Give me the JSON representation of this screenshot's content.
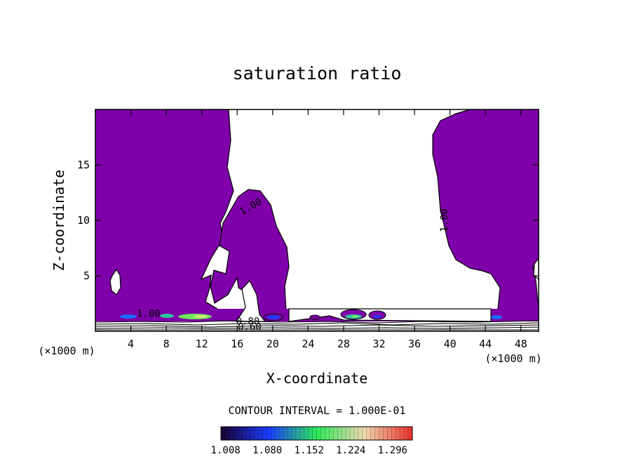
{
  "chart_data": {
    "type": "contour",
    "title": "saturation ratio",
    "xlabel": "X-coordinate",
    "ylabel": "Z-coordinate",
    "x_unit_left": "(×1000 m)",
    "x_unit_right": "(×1000 m)",
    "xlim": [
      0,
      50
    ],
    "ylim": [
      0,
      20
    ],
    "x_ticks": [
      4,
      8,
      12,
      16,
      20,
      24,
      28,
      32,
      36,
      40,
      44,
      48
    ],
    "y_ticks": [
      5,
      10,
      15
    ],
    "contour_labels": [
      {
        "text": "1.00",
        "x": 17.7,
        "z": 11.0,
        "angle": -30
      },
      {
        "text": "1.00",
        "x": 39.7,
        "z": 10.0,
        "angle": -90
      },
      {
        "text": "1.00",
        "x": 6.0,
        "z": 1.3,
        "angle": 0
      },
      {
        "text": "0.80",
        "x": 17.2,
        "z": 0.6,
        "angle": 0
      },
      {
        "text": "0.60",
        "x": 17.4,
        "z": 0.1,
        "angle": 0
      }
    ],
    "fill_color": "#7f00aa",
    "contour_interval_text": "CONTOUR INTERVAL = 1.000E-01",
    "colorbar": {
      "min": 1.0,
      "max": 1.33,
      "tick_labels": [
        "1.008",
        "1.080",
        "1.152",
        "1.224",
        "1.296"
      ],
      "colors": [
        "#1a0033",
        "#1a3cff",
        "#2ee85a",
        "#f0d8b0",
        "#e8302a"
      ]
    },
    "regions": [
      {
        "name": "left-supersaturated-column",
        "x": [
          0,
          15.4
        ],
        "z": [
          0.9,
          20
        ]
      },
      {
        "name": "central-tower",
        "x": [
          14,
          21.8
        ],
        "z": [
          0.9,
          12.4
        ]
      },
      {
        "name": "right-supersaturated-column",
        "x": [
          37.6,
          50
        ],
        "z": [
          0.9,
          20
        ]
      }
    ]
  }
}
